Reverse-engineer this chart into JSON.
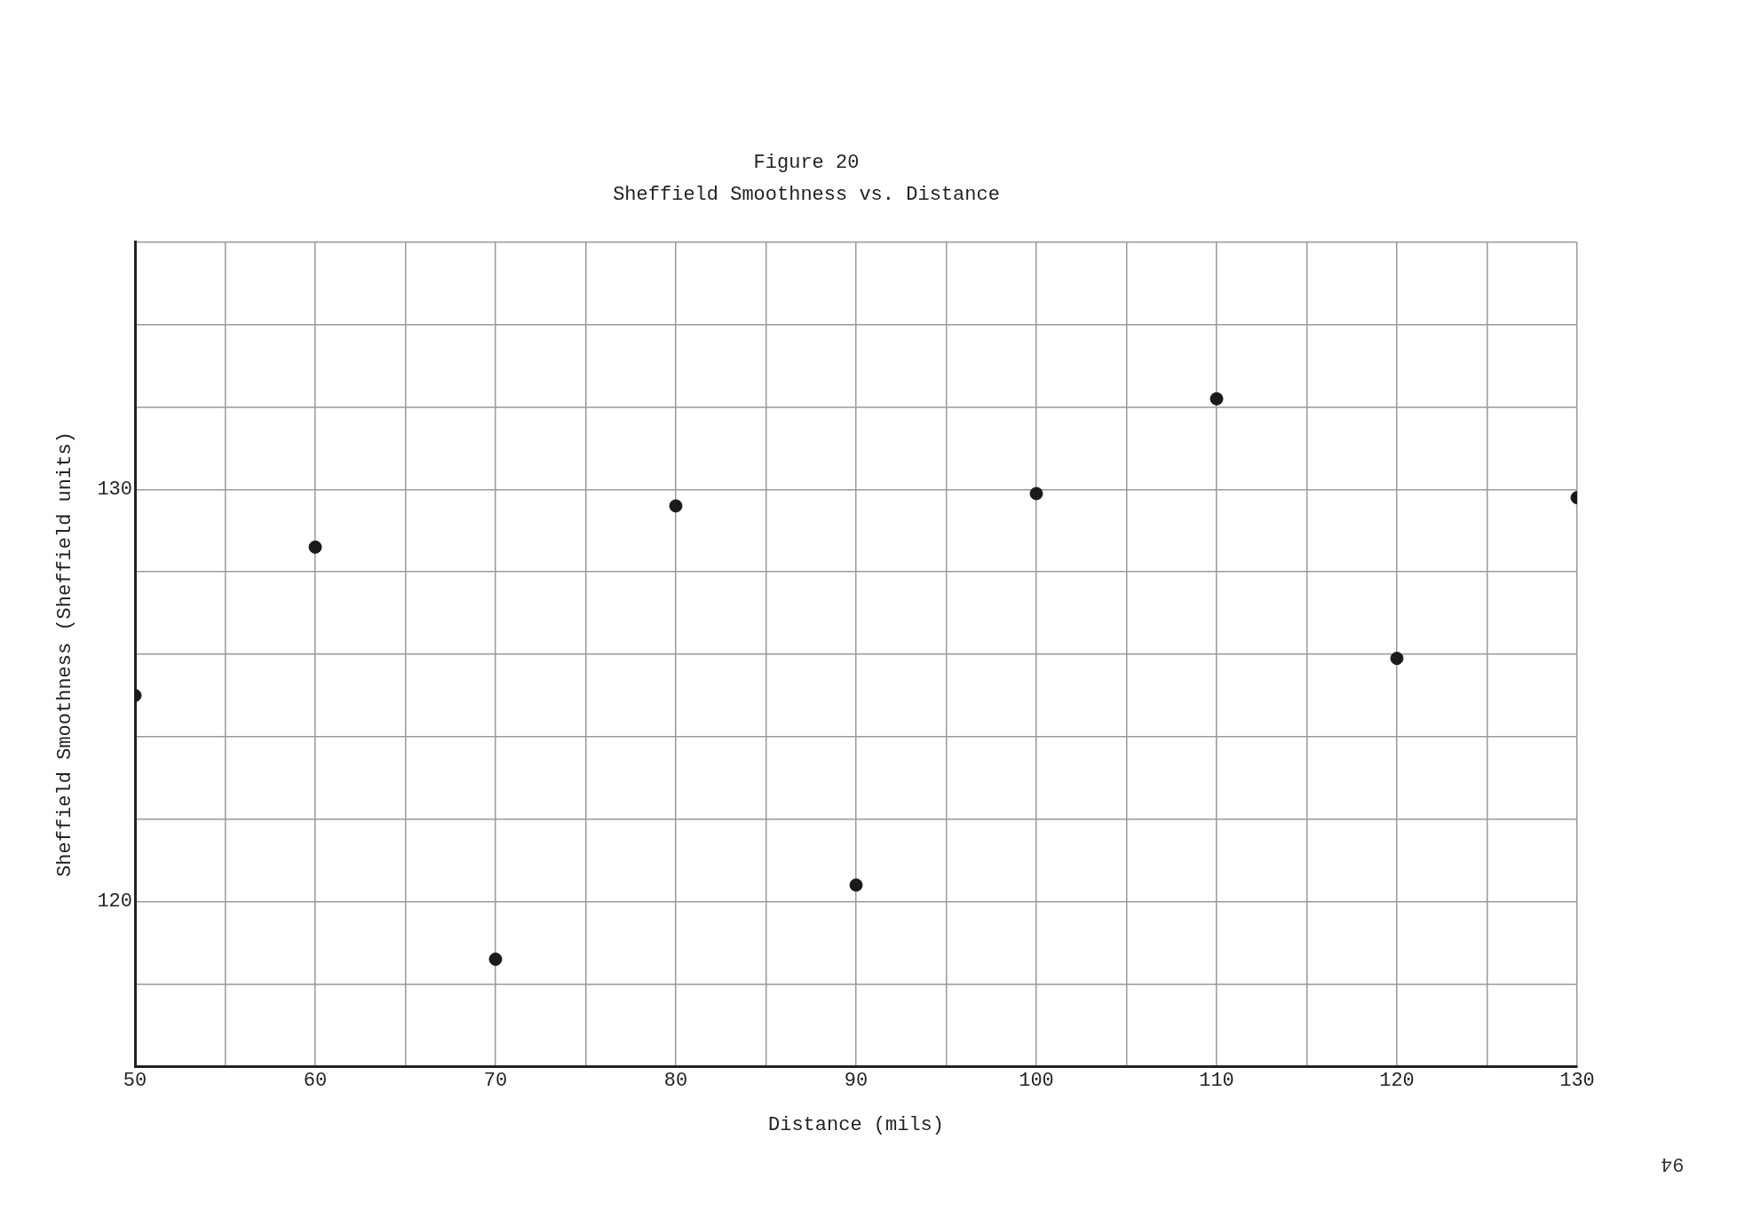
{
  "chart_data": {
    "type": "scatter",
    "title": "Figure 20",
    "subtitle": "Sheffield Smoothness vs. Distance",
    "xlabel": "Distance (mils)",
    "ylabel": "Sheffield Smoothness (Sheffield units)",
    "x": [
      50,
      60,
      70,
      80,
      90,
      100,
      110,
      120,
      130
    ],
    "series": [
      {
        "color": "#1a1a1a",
        "values": [
          125,
          128.6,
          118.6,
          129.6,
          120.4,
          129.9,
          132.2,
          125.9,
          129.8
        ]
      }
    ],
    "xlim": [
      50,
      130
    ],
    "ylim": [
      116,
      136
    ],
    "xticks": [
      50,
      {
        "value": 55,
        "label": null
      },
      60,
      {
        "value": 65,
        "label": null
      },
      70,
      {
        "value": 75,
        "label": null
      },
      80,
      {
        "value": 85,
        "label": null
      },
      90,
      {
        "value": 95,
        "label": null
      },
      100,
      {
        "value": 105,
        "label": null
      },
      110,
      {
        "value": 115,
        "label": null
      },
      120,
      {
        "value": 125,
        "label": null
      },
      130
    ],
    "yticks": [
      {
        "value": 116,
        "label": null
      },
      {
        "value": 118,
        "label": null
      },
      120,
      {
        "value": 122,
        "label": null
      },
      {
        "value": 124,
        "label": null
      },
      {
        "value": 126,
        "label": null
      },
      {
        "value": 128,
        "label": null
      },
      130,
      {
        "value": 132,
        "label": null
      },
      {
        "value": 134,
        "label": null
      },
      {
        "value": 136,
        "label": null
      }
    ],
    "grid": true,
    "marker": "circle",
    "legend": false,
    "annotations": [
      "94"
    ]
  }
}
